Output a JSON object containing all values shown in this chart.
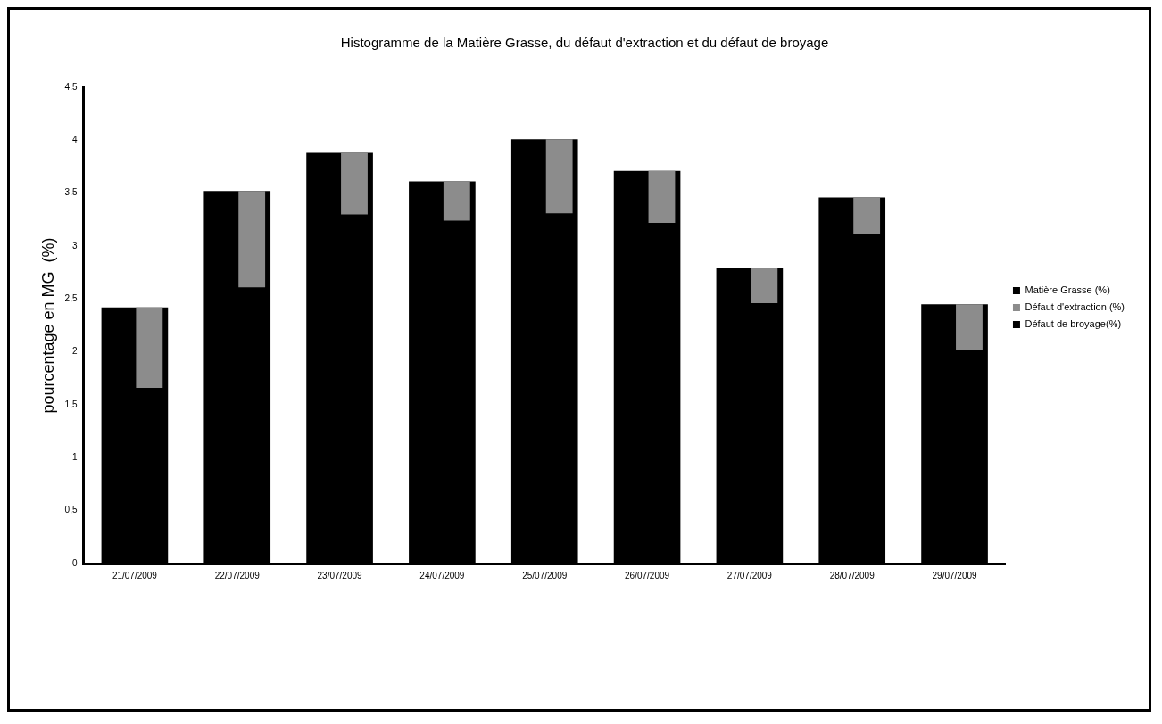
{
  "chart_data": {
    "type": "bar",
    "title": "Histogramme de la Matière Grasse, du défaut d'extraction et du défaut de broyage",
    "ylabel": "pourcentage en MG  (%)",
    "categories": [
      "21/07/2009",
      "22/07/2009",
      "23/07/2009",
      "24/07/2009",
      "25/07/2009",
      "26/07/2009",
      "27/07/2009",
      "28/07/2009",
      "29/07/2009"
    ],
    "series": [
      {
        "name": "Matière Grasse (%)",
        "color": "#000000",
        "values": [
          2.42,
          3.52,
          3.88,
          3.61,
          4.01,
          3.71,
          2.79,
          3.46,
          2.45
        ]
      },
      {
        "name": "Défaut d'extraction (%)",
        "color": "#8c8c8c",
        "base": [
          1.66,
          2.61,
          3.3,
          3.24,
          3.31,
          3.22,
          2.46,
          3.11,
          2.02
        ],
        "values": [
          0.76,
          0.91,
          0.58,
          0.37,
          0.7,
          0.49,
          0.33,
          0.35,
          0.43
        ]
      },
      {
        "name": "Défaut de broyage(%)",
        "color": "#000000",
        "values": [
          null,
          null,
          null,
          null,
          null,
          null,
          null,
          null,
          null
        ]
      }
    ],
    "ylim": [
      0,
      4.5
    ],
    "yticks": [
      0,
      {
        "value": 0.5,
        "label": "0,5"
      },
      1,
      {
        "value": 1.5,
        "label": "1,5"
      },
      2,
      {
        "value": 2.5,
        "label": "2,5"
      },
      3,
      3.5,
      4,
      4.5
    ],
    "grid": false,
    "legend": "right"
  }
}
